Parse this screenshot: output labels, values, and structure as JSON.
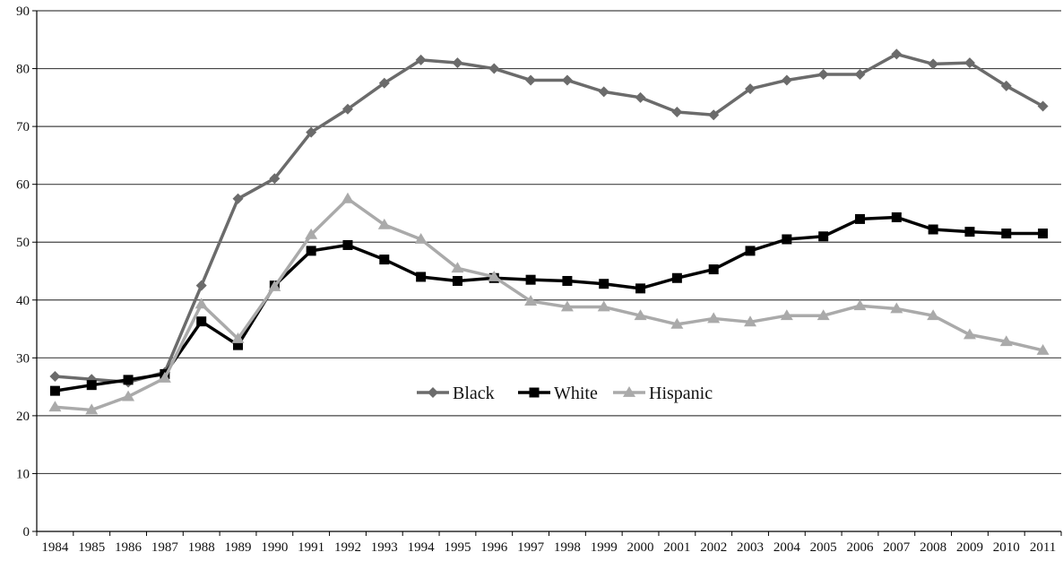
{
  "chart_data": {
    "type": "line",
    "title": "",
    "xlabel": "",
    "ylabel": "",
    "ylim": [
      0,
      90
    ],
    "yticks": [
      0,
      10,
      20,
      30,
      40,
      50,
      60,
      70,
      80,
      90
    ],
    "grid": true,
    "legend_position": "center",
    "categories": [
      "1984",
      "1985",
      "1986",
      "1987",
      "1988",
      "1989",
      "1990",
      "1991",
      "1992",
      "1993",
      "1994",
      "1995",
      "1996",
      "1997",
      "1998",
      "1999",
      "2000",
      "2001",
      "2002",
      "2003",
      "2004",
      "2005",
      "2006",
      "2007",
      "2008",
      "2009",
      "2010",
      "2011"
    ],
    "series": [
      {
        "name": "Black",
        "marker": "diamond",
        "color": "#6b6b6b",
        "values": [
          26.8,
          26.3,
          25.8,
          27.5,
          42.5,
          57.5,
          61.0,
          69.0,
          73.0,
          77.5,
          81.5,
          81.0,
          80.0,
          78.0,
          78.0,
          76.0,
          75.0,
          72.5,
          72.0,
          76.5,
          78.0,
          79.0,
          79.0,
          82.5,
          80.8,
          81.0,
          77.0,
          73.5
        ]
      },
      {
        "name": "White",
        "marker": "square",
        "color": "#000000",
        "values": [
          24.3,
          25.3,
          26.2,
          27.2,
          36.3,
          32.2,
          42.5,
          48.5,
          49.5,
          47.0,
          44.0,
          43.3,
          43.8,
          43.5,
          43.3,
          42.8,
          42.0,
          43.8,
          45.3,
          48.5,
          50.5,
          51.0,
          54.0,
          54.3,
          52.2,
          51.8,
          51.5,
          51.5
        ]
      },
      {
        "name": "Hispanic",
        "marker": "triangle",
        "color": "#aaaaaa",
        "values": [
          21.5,
          21.0,
          23.3,
          26.5,
          39.3,
          33.3,
          42.3,
          51.3,
          57.5,
          53.0,
          50.5,
          45.5,
          44.0,
          39.8,
          38.8,
          38.8,
          37.3,
          35.8,
          36.8,
          36.2,
          37.3,
          37.3,
          39.0,
          38.5,
          37.3,
          34.0,
          32.8,
          31.3
        ]
      }
    ]
  }
}
